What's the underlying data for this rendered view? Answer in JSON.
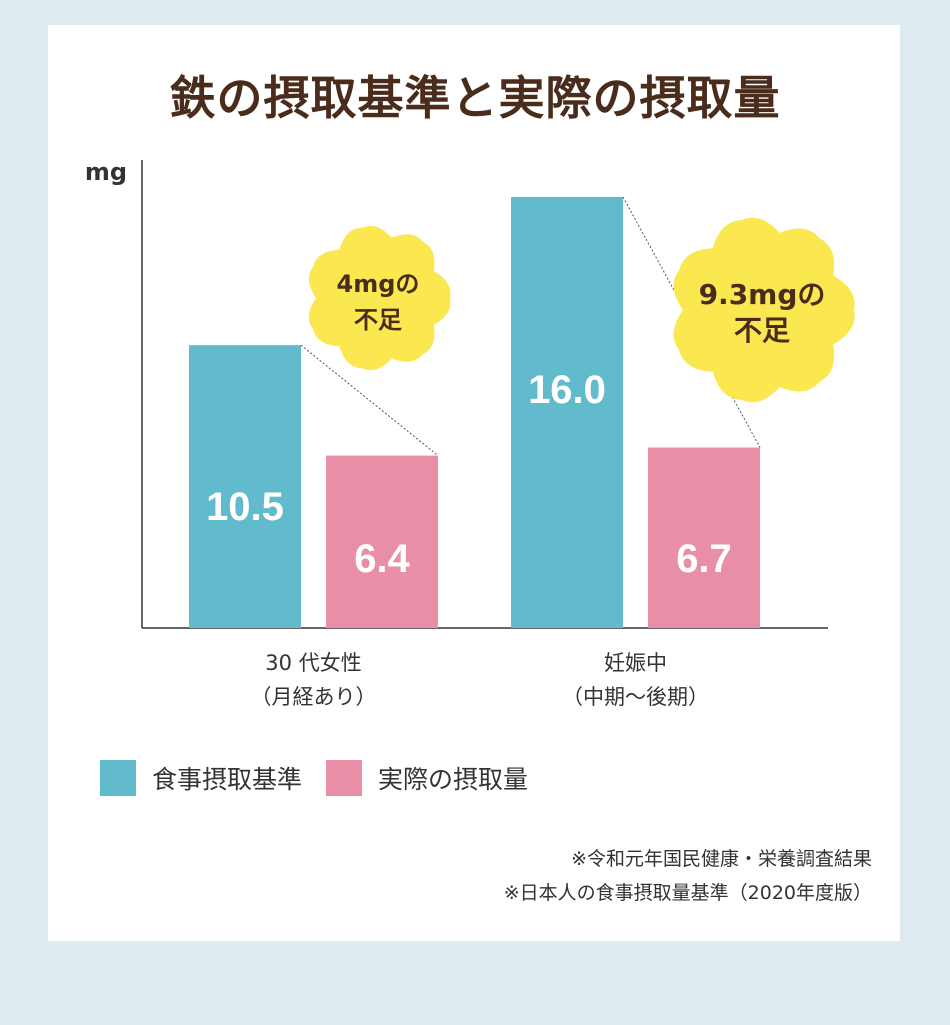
{
  "title": "鉄の摂取基準と実際の摂取量",
  "chart_data": {
    "type": "bar",
    "unit_label": "mg",
    "categories": [
      {
        "line1": "30 代女性",
        "line2": "（月経あり）"
      },
      {
        "line1": "妊娠中",
        "line2": "（中期〜後期）"
      }
    ],
    "series": [
      {
        "name": "食事摂取基準",
        "color": "#62bacd",
        "values": [
          10.5,
          16.0
        ],
        "labels": [
          "10.5",
          "16.0"
        ]
      },
      {
        "name": "実際の摂取量",
        "color": "#e88ea6",
        "values": [
          6.4,
          6.7
        ],
        "labels": [
          "6.4",
          "6.7"
        ]
      }
    ],
    "ylim": [
      0,
      17.5
    ],
    "grid": false,
    "annotations": [
      {
        "line1": "4mgの",
        "line2": "不足",
        "color": "#fbe74f"
      },
      {
        "line1": "9.3mgの",
        "line2": "不足",
        "color": "#fbe74f"
      }
    ]
  },
  "legend": [
    {
      "label": "食事摂取基準",
      "color": "#62bacd"
    },
    {
      "label": "実際の摂取量",
      "color": "#e88ea6"
    }
  ],
  "notes": [
    "※令和元年国民健康・栄養調査結果",
    "※日本人の食事摂取量基準（2020年度版）"
  ]
}
